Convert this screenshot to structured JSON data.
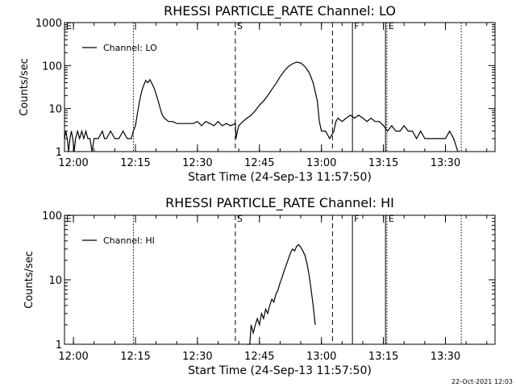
{
  "footer": {
    "timestamp": "22-Oct-2021 12:03"
  },
  "chart_data": [
    {
      "type": "line",
      "title": "RHESSI PARTICLE_RATE Channel: LO",
      "xlabel": "Start Time (24-Sep-13 11:57:50)",
      "ylabel": "Counts/sec",
      "xlim": [
        "11:57:50",
        "13:42:00"
      ],
      "ylim": [
        1,
        1000
      ],
      "yscale": "log",
      "xticks": [
        "12:00",
        "12:15",
        "12:30",
        "12:45",
        "13:00",
        "13:15",
        "13:30"
      ],
      "yticks": [
        "1",
        "10",
        "100",
        "1000"
      ],
      "legend": {
        "placement": "top-left",
        "entries": [
          "Channel: LO"
        ]
      },
      "markers": [
        {
          "label": "E",
          "time": "11:57:50",
          "style": "dotted"
        },
        {
          "label": "",
          "time": "12:14:30",
          "style": "dotted"
        },
        {
          "label": "S",
          "time": "12:39:10",
          "style": "dashed"
        },
        {
          "label": "",
          "time": "13:02:40",
          "style": "dashed"
        },
        {
          "label": "F",
          "time": "13:07:30",
          "style": "solid"
        },
        {
          "label": "",
          "time": "13:15:30",
          "style": "solid"
        },
        {
          "label": "E",
          "time": "13:15:50",
          "style": "dotted"
        },
        {
          "label": "",
          "time": "13:33:50",
          "style": "dotted"
        }
      ],
      "series": [
        {
          "name": "Channel: LO",
          "points": [
            [
              "11:57:50",
              2
            ],
            [
              "11:58:10",
              3
            ],
            [
              "11:58:30",
              2
            ],
            [
              "11:58:50",
              1
            ],
            [
              "11:59:10",
              2
            ],
            [
              "11:59:30",
              3
            ],
            [
              "11:59:50",
              2
            ],
            [
              "12:00:10",
              1
            ],
            [
              "12:00:30",
              2
            ],
            [
              "12:01:00",
              3
            ],
            [
              "12:01:30",
              2
            ],
            [
              "12:02:00",
              3
            ],
            [
              "12:02:30",
              2
            ],
            [
              "12:03:00",
              3
            ],
            [
              "12:03:30",
              2
            ],
            [
              "12:04:00",
              2
            ],
            [
              "12:04:30",
              1
            ],
            [
              "12:05:00",
              2
            ],
            [
              "12:06:00",
              2
            ],
            [
              "12:07:00",
              3
            ],
            [
              "12:07:30",
              2
            ],
            [
              "12:08:00",
              2
            ],
            [
              "12:09:00",
              3
            ],
            [
              "12:10:00",
              2
            ],
            [
              "12:11:00",
              2
            ],
            [
              "12:12:00",
              3
            ],
            [
              "12:13:00",
              2
            ],
            [
              "12:14:00",
              2
            ],
            [
              "12:14:30",
              3
            ],
            [
              "12:15:00",
              4
            ],
            [
              "12:15:30",
              8
            ],
            [
              "12:16:00",
              15
            ],
            [
              "12:16:30",
              25
            ],
            [
              "12:17:00",
              35
            ],
            [
              "12:17:30",
              45
            ],
            [
              "12:18:00",
              40
            ],
            [
              "12:18:30",
              47
            ],
            [
              "12:19:00",
              38
            ],
            [
              "12:19:30",
              30
            ],
            [
              "12:20:00",
              22
            ],
            [
              "12:20:30",
              15
            ],
            [
              "12:21:00",
              10
            ],
            [
              "12:21:30",
              7
            ],
            [
              "12:22:00",
              6
            ],
            [
              "12:23:00",
              5
            ],
            [
              "12:24:00",
              5
            ],
            [
              "12:25:00",
              4.5
            ],
            [
              "12:27:00",
              4.5
            ],
            [
              "12:29:00",
              4.5
            ],
            [
              "12:30:00",
              5
            ],
            [
              "12:31:00",
              4
            ],
            [
              "12:32:00",
              5
            ],
            [
              "12:33:00",
              4.5
            ],
            [
              "12:34:00",
              4
            ],
            [
              "12:35:00",
              5
            ],
            [
              "12:36:00",
              4
            ],
            [
              "12:37:00",
              4.5
            ],
            [
              "12:38:00",
              4
            ],
            [
              "12:39:10",
              4.5
            ],
            [
              "12:39:20",
              2
            ],
            [
              "12:39:40",
              3
            ],
            [
              "12:40:00",
              4
            ],
            [
              "12:41:00",
              5
            ],
            [
              "12:42:00",
              6
            ],
            [
              "12:43:00",
              7
            ],
            [
              "12:44:00",
              9
            ],
            [
              "12:45:00",
              12
            ],
            [
              "12:46:00",
              15
            ],
            [
              "12:47:00",
              20
            ],
            [
              "12:48:00",
              28
            ],
            [
              "12:49:00",
              38
            ],
            [
              "12:50:00",
              55
            ],
            [
              "12:51:00",
              75
            ],
            [
              "12:52:00",
              95
            ],
            [
              "12:53:00",
              110
            ],
            [
              "12:54:00",
              120
            ],
            [
              "12:55:00",
              115
            ],
            [
              "12:56:00",
              95
            ],
            [
              "12:57:00",
              70
            ],
            [
              "12:58:00",
              40
            ],
            [
              "12:59:00",
              15
            ],
            [
              "12:59:30",
              5
            ],
            [
              "13:00:00",
              3
            ],
            [
              "13:01:00",
              3
            ],
            [
              "13:02:00",
              2
            ],
            [
              "13:03:00",
              3
            ],
            [
              "13:03:30",
              5
            ],
            [
              "13:04:00",
              6
            ],
            [
              "13:05:00",
              5
            ],
            [
              "13:06:00",
              6
            ],
            [
              "13:07:00",
              7
            ],
            [
              "13:08:00",
              6
            ],
            [
              "13:09:00",
              7
            ],
            [
              "13:10:00",
              6
            ],
            [
              "13:11:00",
              5
            ],
            [
              "13:12:00",
              6
            ],
            [
              "13:13:00",
              5
            ],
            [
              "13:14:00",
              5
            ],
            [
              "13:15:00",
              4
            ],
            [
              "13:16:00",
              3
            ],
            [
              "13:17:00",
              4
            ],
            [
              "13:18:00",
              3
            ],
            [
              "13:19:00",
              3
            ],
            [
              "13:20:00",
              4
            ],
            [
              "13:21:00",
              3
            ],
            [
              "13:22:00",
              3
            ],
            [
              "13:23:00",
              2
            ],
            [
              "13:24:00",
              3
            ],
            [
              "13:25:00",
              2
            ],
            [
              "13:26:00",
              2
            ],
            [
              "13:28:00",
              2
            ],
            [
              "13:30:00",
              2
            ],
            [
              "13:31:00",
              3
            ],
            [
              "13:32:00",
              2
            ],
            [
              "13:33:00",
              1
            ]
          ]
        }
      ]
    },
    {
      "type": "line",
      "title": "RHESSI PARTICLE_RATE Channel: HI",
      "xlabel": "Start Time (24-Sep-13 11:57:50)",
      "ylabel": "Counts/sec",
      "xlim": [
        "11:57:50",
        "13:42:00"
      ],
      "ylim": [
        1,
        100
      ],
      "yscale": "log",
      "xticks": [
        "12:00",
        "12:15",
        "12:30",
        "12:45",
        "13:00",
        "13:15",
        "13:30"
      ],
      "yticks": [
        "1",
        "10",
        "100"
      ],
      "legend": {
        "placement": "top-left",
        "entries": [
          "Channel: HI"
        ]
      },
      "markers": [
        {
          "label": "E",
          "time": "11:57:50",
          "style": "dotted"
        },
        {
          "label": "",
          "time": "12:14:30",
          "style": "dotted"
        },
        {
          "label": "S",
          "time": "12:39:10",
          "style": "dashed"
        },
        {
          "label": "",
          "time": "13:02:40",
          "style": "dashed"
        },
        {
          "label": "F",
          "time": "13:07:30",
          "style": "solid"
        },
        {
          "label": "",
          "time": "13:15:30",
          "style": "solid"
        },
        {
          "label": "E",
          "time": "13:15:50",
          "style": "dotted"
        },
        {
          "label": "",
          "time": "13:33:50",
          "style": "dotted"
        }
      ],
      "series": [
        {
          "name": "Channel: HI",
          "points": [
            [
              "12:42:00",
              1
            ],
            [
              "12:42:40",
              1
            ],
            [
              "12:43:00",
              2
            ],
            [
              "12:43:30",
              1.5
            ],
            [
              "12:44:00",
              2
            ],
            [
              "12:44:30",
              2.5
            ],
            [
              "12:45:00",
              2
            ],
            [
              "12:45:30",
              3
            ],
            [
              "12:46:00",
              2.5
            ],
            [
              "12:46:30",
              3.5
            ],
            [
              "12:47:00",
              3
            ],
            [
              "12:47:30",
              4
            ],
            [
              "12:48:00",
              5
            ],
            [
              "12:48:30",
              4.5
            ],
            [
              "12:49:00",
              6
            ],
            [
              "12:49:30",
              7
            ],
            [
              "12:50:00",
              9
            ],
            [
              "12:50:30",
              11
            ],
            [
              "12:51:00",
              14
            ],
            [
              "12:51:30",
              17
            ],
            [
              "12:52:00",
              21
            ],
            [
              "12:52:30",
              26
            ],
            [
              "12:53:00",
              30
            ],
            [
              "12:53:30",
              28
            ],
            [
              "12:54:00",
              33
            ],
            [
              "12:54:30",
              35
            ],
            [
              "12:55:00",
              32
            ],
            [
              "12:55:30",
              28
            ],
            [
              "12:56:00",
              24
            ],
            [
              "12:56:30",
              18
            ],
            [
              "12:57:00",
              12
            ],
            [
              "12:57:30",
              7
            ],
            [
              "12:58:00",
              4
            ],
            [
              "12:58:30",
              2
            ]
          ]
        }
      ]
    }
  ]
}
